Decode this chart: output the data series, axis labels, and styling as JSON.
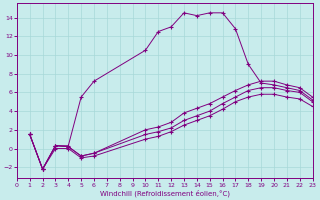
{
  "xlabel": "Windchill (Refroidissement éolien,°C)",
  "xlim": [
    0,
    23
  ],
  "ylim": [
    -3.2,
    15.5
  ],
  "xticks": [
    0,
    1,
    2,
    3,
    4,
    5,
    6,
    7,
    8,
    9,
    10,
    11,
    12,
    13,
    14,
    15,
    16,
    17,
    18,
    19,
    20,
    21,
    22,
    23
  ],
  "yticks": [
    -2,
    0,
    2,
    4,
    6,
    8,
    10,
    12,
    14
  ],
  "background_color": "#c8ecec",
  "line_color": "#800080",
  "grid_color": "#a8d8d8",
  "line1_x": [
    1,
    2,
    3,
    4,
    5,
    6,
    10,
    11,
    12,
    13,
    14,
    15,
    16,
    17,
    18,
    19,
    20,
    21,
    22,
    23
  ],
  "line1_y": [
    1.5,
    -2.2,
    0.3,
    0.3,
    5.5,
    7.2,
    10.5,
    12.5,
    13.0,
    14.5,
    14.2,
    14.5,
    14.5,
    12.8,
    9.0,
    7.0,
    6.8,
    6.5,
    6.2,
    5.2
  ],
  "line2_x": [
    1,
    2,
    3,
    4,
    5,
    6,
    10,
    11,
    12,
    13,
    14,
    15,
    16,
    17,
    18,
    19,
    20,
    21,
    22,
    23
  ],
  "line2_y": [
    1.5,
    -2.2,
    0.3,
    0.2,
    -0.8,
    -0.5,
    2.0,
    2.3,
    2.8,
    3.8,
    4.3,
    4.8,
    5.5,
    6.2,
    6.8,
    7.2,
    7.2,
    6.8,
    6.5,
    5.5
  ],
  "line3_x": [
    1,
    2,
    3,
    4,
    5,
    6,
    10,
    11,
    12,
    13,
    14,
    15,
    16,
    17,
    18,
    19,
    20,
    21,
    22,
    23
  ],
  "line3_y": [
    1.5,
    -2.2,
    0.3,
    0.2,
    -0.8,
    -0.5,
    1.5,
    1.8,
    2.2,
    3.0,
    3.5,
    4.0,
    4.8,
    5.5,
    6.2,
    6.5,
    6.5,
    6.2,
    6.0,
    5.0
  ],
  "line4_x": [
    1,
    2,
    3,
    4,
    5,
    6,
    10,
    11,
    12,
    13,
    14,
    15,
    16,
    17,
    18,
    19,
    20,
    21,
    22,
    23
  ],
  "line4_y": [
    1.5,
    -2.2,
    0.0,
    0.0,
    -1.0,
    -0.8,
    1.0,
    1.3,
    1.8,
    2.5,
    3.0,
    3.5,
    4.2,
    5.0,
    5.5,
    5.8,
    5.8,
    5.5,
    5.3,
    4.5
  ]
}
